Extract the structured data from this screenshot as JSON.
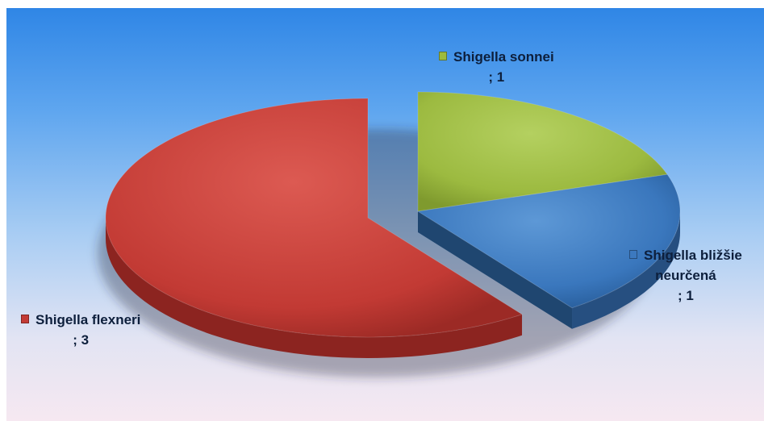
{
  "chart_data": {
    "type": "pie",
    "style": "3d-exploded",
    "slices": [
      {
        "name": "Shigella sonnei",
        "value": 1,
        "value_label": "; 1",
        "color": "#9dbb3e"
      },
      {
        "name": "Shigella bližšie neurčená",
        "name_lines": [
          "Shigella bližšie",
          "neurčená"
        ],
        "value": 1,
        "value_label": "; 1",
        "color": "#3c79bf"
      },
      {
        "name": "Shigella flexneri",
        "value": 3,
        "value_label": "; 3",
        "color": "#c33b36"
      }
    ],
    "legend": "none",
    "data_labels": "category name and value"
  }
}
